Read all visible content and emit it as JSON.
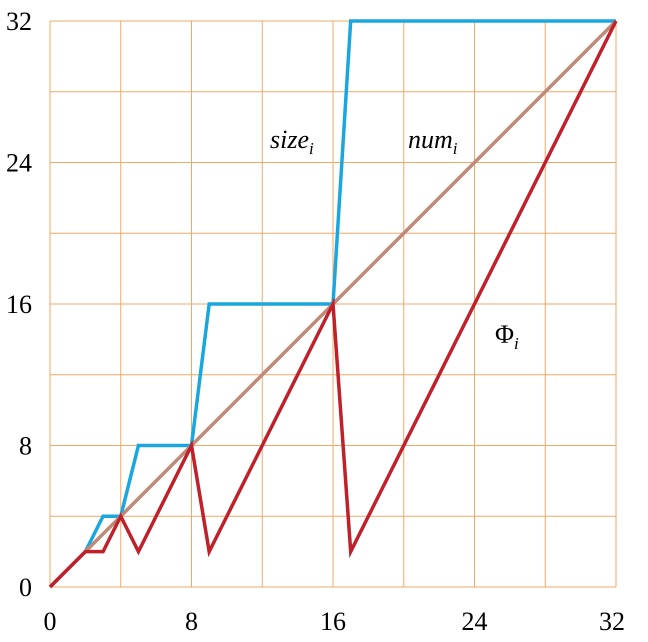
{
  "chart_data": {
    "type": "line",
    "title": "",
    "xlabel": "",
    "ylabel": "",
    "xlim": [
      0,
      32
    ],
    "ylim": [
      0,
      32
    ],
    "grid": true,
    "x_ticks": [
      0,
      8,
      16,
      24,
      32
    ],
    "y_ticks": [
      0,
      8,
      16,
      24,
      32
    ],
    "series": [
      {
        "name": "size",
        "subscript": "i",
        "color": "#1aa7e0",
        "points": [
          [
            0,
            0
          ],
          [
            1,
            1
          ],
          [
            2,
            2
          ],
          [
            3,
            4
          ],
          [
            4,
            4
          ],
          [
            5,
            8
          ],
          [
            6,
            8
          ],
          [
            7,
            8
          ],
          [
            8,
            8
          ],
          [
            9,
            16
          ],
          [
            10,
            16
          ],
          [
            11,
            16
          ],
          [
            12,
            16
          ],
          [
            13,
            16
          ],
          [
            14,
            16
          ],
          [
            15,
            16
          ],
          [
            16,
            16
          ],
          [
            17,
            32
          ],
          [
            18,
            32
          ],
          [
            19,
            32
          ],
          [
            20,
            32
          ],
          [
            21,
            32
          ],
          [
            22,
            32
          ],
          [
            23,
            32
          ],
          [
            24,
            32
          ],
          [
            25,
            32
          ],
          [
            26,
            32
          ],
          [
            27,
            32
          ],
          [
            28,
            32
          ],
          [
            29,
            32
          ],
          [
            30,
            32
          ],
          [
            31,
            32
          ],
          [
            32,
            32
          ]
        ]
      },
      {
        "name": "num",
        "subscript": "i",
        "color": "#c08a78",
        "points": [
          [
            0,
            0
          ],
          [
            32,
            32
          ]
        ]
      },
      {
        "name": "Φ",
        "subscript": "i",
        "color": "#c0202a",
        "points": [
          [
            0,
            0
          ],
          [
            1,
            1
          ],
          [
            2,
            2
          ],
          [
            3,
            2
          ],
          [
            4,
            4
          ],
          [
            5,
            2
          ],
          [
            6,
            4
          ],
          [
            7,
            6
          ],
          [
            8,
            8
          ],
          [
            9,
            2
          ],
          [
            10,
            4
          ],
          [
            11,
            6
          ],
          [
            12,
            8
          ],
          [
            13,
            10
          ],
          [
            14,
            12
          ],
          [
            15,
            14
          ],
          [
            16,
            16
          ],
          [
            17,
            2
          ],
          [
            18,
            4
          ],
          [
            19,
            6
          ],
          [
            20,
            8
          ],
          [
            21,
            10
          ],
          [
            22,
            12
          ],
          [
            23,
            14
          ],
          [
            24,
            16
          ],
          [
            25,
            18
          ],
          [
            26,
            20
          ],
          [
            27,
            22
          ],
          [
            28,
            24
          ],
          [
            29,
            26
          ],
          [
            30,
            28
          ],
          [
            31,
            30
          ],
          [
            32,
            32
          ]
        ]
      }
    ]
  }
}
